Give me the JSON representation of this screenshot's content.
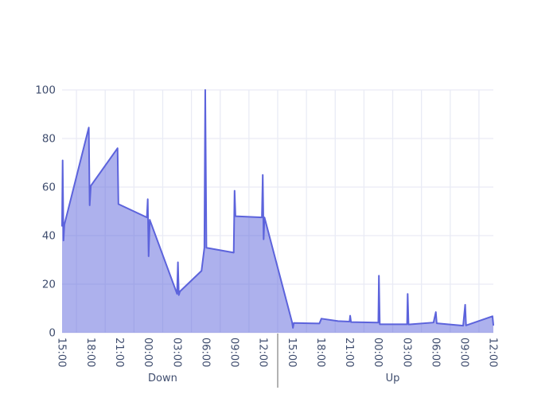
{
  "chart_data": {
    "type": "area",
    "title": "",
    "legend": false,
    "grid": true,
    "x_axis": {
      "unit": "time-of-day ticks, 3 hours apart; x stored as tick index 0-15",
      "gridline_position": "boundaries between ticks",
      "groups": [
        {
          "label": "Down",
          "ticks": [
            "15:00",
            "18:00",
            "21:00",
            "00:00",
            "03:00",
            "06:00",
            "09:00",
            "12:00"
          ]
        },
        {
          "label": "Up",
          "ticks": [
            "15:00",
            "18:00",
            "21:00",
            "00:00",
            "03:00",
            "06:00",
            "09:00",
            "12:00"
          ]
        }
      ]
    },
    "y_axis": {
      "range": [
        0,
        100
      ],
      "ticks": [
        0,
        20,
        40,
        60,
        80,
        100
      ]
    },
    "series": [
      {
        "name": "",
        "fill": "tozeroy",
        "points": [
          [
            0.0,
            44
          ],
          [
            0.02,
            71
          ],
          [
            0.05,
            38
          ],
          [
            0.08,
            44.5
          ],
          [
            0.93,
            84.5
          ],
          [
            0.96,
            52.5
          ],
          [
            1.0,
            60.5
          ],
          [
            1.93,
            76
          ],
          [
            1.96,
            53
          ],
          [
            2.95,
            47.5
          ],
          [
            2.98,
            55
          ],
          [
            3.01,
            31.5
          ],
          [
            3.05,
            46.5
          ],
          [
            4.0,
            16
          ],
          [
            4.03,
            29
          ],
          [
            4.06,
            15.5
          ],
          [
            4.1,
            17
          ],
          [
            4.85,
            25.5
          ],
          [
            4.95,
            35
          ],
          [
            4.98,
            100
          ],
          [
            5.02,
            35
          ],
          [
            5.97,
            33
          ],
          [
            6.0,
            58.5
          ],
          [
            6.03,
            48
          ],
          [
            6.95,
            47.5
          ],
          [
            6.98,
            65
          ],
          [
            7.01,
            38.5
          ],
          [
            7.04,
            47.5
          ],
          [
            8.0,
            4.3
          ],
          [
            8.03,
            2
          ],
          [
            8.06,
            4
          ],
          [
            8.95,
            3.8
          ],
          [
            9.02,
            5.8
          ],
          [
            9.6,
            4.8
          ],
          [
            10.0,
            4.6
          ],
          [
            10.02,
            7
          ],
          [
            10.05,
            4.4
          ],
          [
            11.0,
            4.2
          ],
          [
            11.02,
            23.5
          ],
          [
            11.05,
            3.5
          ],
          [
            12.0,
            3.5
          ],
          [
            12.02,
            16
          ],
          [
            12.05,
            3.4
          ],
          [
            12.92,
            4.2
          ],
          [
            13.0,
            8.5
          ],
          [
            13.03,
            3.9
          ],
          [
            13.95,
            2.9
          ],
          [
            14.02,
            11.5
          ],
          [
            14.05,
            3.0
          ],
          [
            14.97,
            6.8
          ],
          [
            15.0,
            3.2
          ]
        ]
      }
    ],
    "colors": {
      "line": "#5c63dc",
      "fill_opacity": 0.5,
      "grid": "#e9ebf5",
      "tick_text": "#3f4d6e",
      "group_divider": "#999999",
      "background": "#ffffff"
    }
  }
}
